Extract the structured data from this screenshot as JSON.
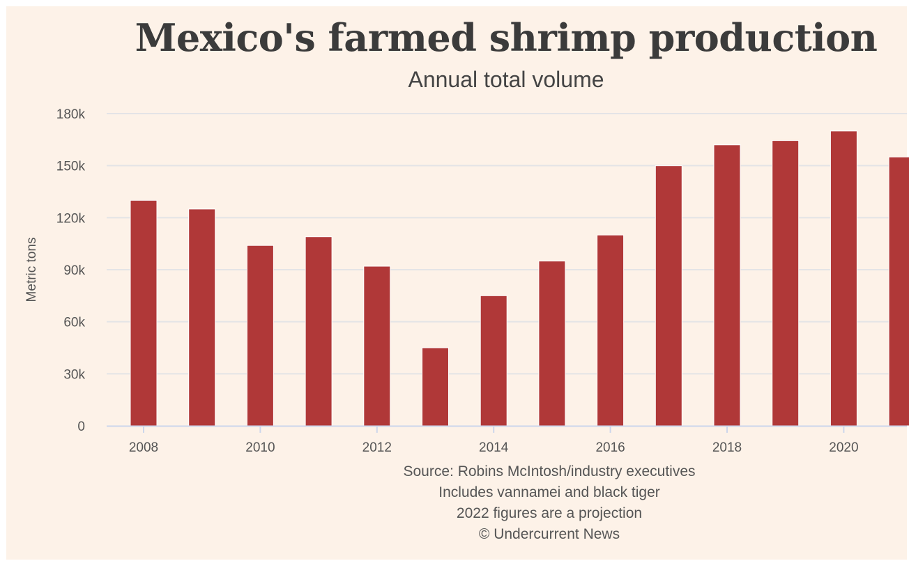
{
  "chart_data": {
    "type": "bar",
    "title": "Mexico's farmed shrimp production",
    "subtitle": "Annual total volume",
    "ylabel": "Metric tons",
    "xlabel": "",
    "categories": [
      "2008",
      "2009",
      "2010",
      "2011",
      "2012",
      "2013",
      "2014",
      "2015",
      "2016",
      "2017",
      "2018",
      "2019",
      "2020",
      "2021"
    ],
    "values": [
      130000,
      125000,
      104000,
      109000,
      92000,
      45000,
      75000,
      95000,
      110000,
      150000,
      162000,
      164500,
      170000,
      155000
    ],
    "x_tick_labels": [
      "2008",
      "2010",
      "2012",
      "2014",
      "2016",
      "2018",
      "2020"
    ],
    "y_tick_labels": [
      "0",
      "30k",
      "60k",
      "90k",
      "120k",
      "150k",
      "180k"
    ],
    "y_tick_values": [
      0,
      30000,
      60000,
      90000,
      120000,
      150000,
      180000
    ],
    "ylim": [
      0,
      180000
    ],
    "grid": true,
    "legend": "none",
    "bar_color": "#b03838",
    "notes": [
      "Source: Robins McIntosh/industry executives",
      "Includes vannamei and black tiger",
      "2022 figures are a projection",
      "© Undercurrent News"
    ]
  },
  "colors": {
    "background": "#fdf2e8",
    "bar": "#b03838",
    "grid": "#e4e4e6",
    "axis": "#ccd6eb",
    "text": "#555555"
  }
}
